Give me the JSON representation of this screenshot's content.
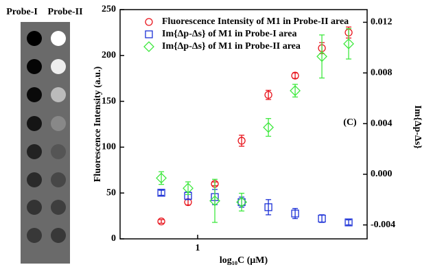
{
  "panel_labels": [
    "Probe-I",
    "Probe-II"
  ],
  "chart_data": {
    "type": "scatter",
    "annotation": "(C)",
    "x_label": "log₁₀C (μM)",
    "y_label": "Fluorescence Intensity (a.u.)",
    "y2_label": "Im{Δp-Δs}",
    "log_x": true,
    "x": [
      0.39,
      0.78,
      1.56,
      3.125,
      6.25,
      12.5,
      25,
      50
    ],
    "xlim": [
      0.134,
      80.7
    ],
    "xticks": [
      1
    ],
    "ylim": [
      0,
      250
    ],
    "yticks": [
      0,
      50,
      100,
      150,
      200,
      250
    ],
    "y2lim": [
      -0.0051,
      0.013
    ],
    "y2ticks": [
      0.012,
      0.008,
      0.004,
      {
        "value": 0,
        "label": "0.000"
      },
      -0.004
    ],
    "legend": "top-left",
    "series": [
      {
        "name": "Fluorescence Intensity of M1 in Probe-II area",
        "color": "#e8141c",
        "marker": "circle",
        "axis": "y",
        "values": [
          19,
          40,
          60,
          107,
          157,
          178,
          208,
          225
        ],
        "errors": [
          2,
          3,
          2,
          6,
          5,
          3,
          6,
          6
        ]
      },
      {
        "name": "Im{Δp-Δs} of M1 in Probe-I area",
        "color": "#1a2fd6",
        "marker": "square",
        "axis": "y2",
        "values": [
          -0.00146,
          -0.0017,
          -0.0018,
          -0.0022,
          -0.0026,
          -0.0031,
          -0.0035,
          -0.0038
        ],
        "errors": [
          0.0002,
          0.0003,
          0.0006,
          0.0004,
          0.0006,
          0.0004,
          0.0003,
          0.0002
        ]
      },
      {
        "name": "Im{Δp-Δs} of M1 in Probe-II area",
        "color": "#3ee83e",
        "marker": "diamond",
        "axis": "y2",
        "values": [
          -0.0003,
          -0.0011,
          -0.0021,
          -0.0022,
          0.0037,
          0.0066,
          0.0093,
          0.0103
        ],
        "errors": [
          0.0005,
          0.0005,
          0.0017,
          0.0007,
          0.0007,
          0.0005,
          0.0017,
          0.0012
        ]
      }
    ]
  }
}
